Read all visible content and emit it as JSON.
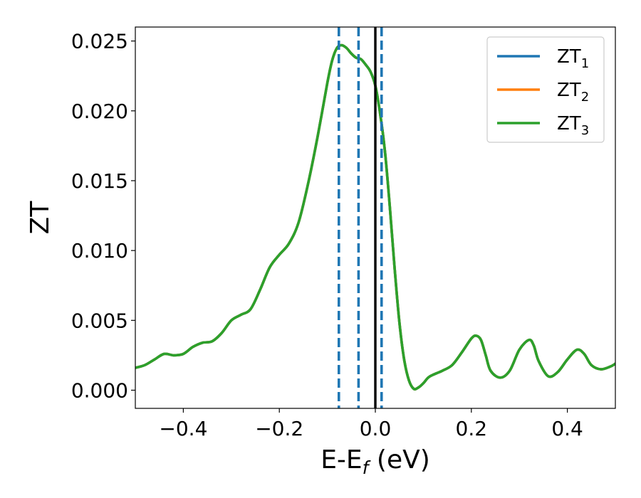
{
  "chart_data": {
    "type": "line",
    "title": "",
    "xlabel": "E-E",
    "xlabel_sub": "f",
    "xlabel_suffix": " (eV)",
    "ylabel": "ZT",
    "xlim": [
      -0.5,
      0.5
    ],
    "ylim": [
      -0.0013,
      0.026
    ],
    "x_ticks": [
      -0.4,
      -0.2,
      0.0,
      0.2,
      0.4
    ],
    "x_tick_labels": [
      "−0.4",
      "−0.2",
      "0.0",
      "0.2",
      "0.4"
    ],
    "y_ticks": [
      0.0,
      0.005,
      0.01,
      0.015,
      0.02,
      0.025
    ],
    "y_tick_labels": [
      "0.000",
      "0.005",
      "0.010",
      "0.015",
      "0.020",
      "0.025"
    ],
    "grid": false,
    "legend_position": "top-right",
    "vertical_lines": [
      {
        "x": -0.076,
        "style": "dashed",
        "color": "#1f77b4"
      },
      {
        "x": -0.035,
        "style": "dashed",
        "color": "#1f77b4"
      },
      {
        "x": 0.013,
        "style": "dashed",
        "color": "#1f77b4"
      },
      {
        "x": 0.0,
        "style": "solid",
        "color": "#000000"
      }
    ],
    "x": [
      -0.5,
      -0.48,
      -0.46,
      -0.44,
      -0.42,
      -0.4,
      -0.38,
      -0.36,
      -0.34,
      -0.32,
      -0.3,
      -0.28,
      -0.26,
      -0.24,
      -0.22,
      -0.2,
      -0.18,
      -0.16,
      -0.14,
      -0.12,
      -0.1,
      -0.09,
      -0.08,
      -0.07,
      -0.06,
      -0.05,
      -0.04,
      -0.03,
      -0.02,
      -0.01,
      0.0,
      0.01,
      0.02,
      0.03,
      0.04,
      0.05,
      0.06,
      0.07,
      0.08,
      0.09,
      0.1,
      0.11,
      0.12,
      0.14,
      0.16,
      0.18,
      0.2,
      0.21,
      0.22,
      0.23,
      0.24,
      0.26,
      0.28,
      0.3,
      0.32,
      0.33,
      0.34,
      0.36,
      0.38,
      0.4,
      0.42,
      0.435,
      0.45,
      0.47,
      0.49,
      0.5
    ],
    "series": [
      {
        "name": "ZT",
        "sub": "1",
        "color": "#1f77b4",
        "values": [
          0.0016,
          0.0018,
          0.0022,
          0.0026,
          0.0025,
          0.0026,
          0.0031,
          0.0034,
          0.0035,
          0.0041,
          0.005,
          0.0054,
          0.0058,
          0.0072,
          0.0088,
          0.0097,
          0.0105,
          0.012,
          0.0148,
          0.0182,
          0.022,
          0.0236,
          0.0245,
          0.0247,
          0.0245,
          0.0241,
          0.0238,
          0.0237,
          0.0233,
          0.0228,
          0.0218,
          0.0198,
          0.0171,
          0.0132,
          0.0088,
          0.0049,
          0.0022,
          0.0007,
          0.0001,
          0.0002,
          0.0005,
          0.0009,
          0.0011,
          0.0014,
          0.0018,
          0.0027,
          0.0037,
          0.0039,
          0.0036,
          0.0025,
          0.0014,
          0.0009,
          0.0014,
          0.0029,
          0.0036,
          0.0032,
          0.0021,
          0.001,
          0.0013,
          0.0022,
          0.0029,
          0.0026,
          0.0018,
          0.0015,
          0.0017,
          0.0019
        ]
      },
      {
        "name": "ZT",
        "sub": "2",
        "color": "#ff7f0e",
        "values": [
          0.0016,
          0.0018,
          0.0022,
          0.0026,
          0.0025,
          0.0026,
          0.0031,
          0.0034,
          0.0035,
          0.0041,
          0.005,
          0.0054,
          0.0058,
          0.0072,
          0.0088,
          0.0097,
          0.0105,
          0.012,
          0.0148,
          0.0182,
          0.022,
          0.0236,
          0.0245,
          0.0247,
          0.0245,
          0.0241,
          0.0238,
          0.0237,
          0.0233,
          0.0228,
          0.0218,
          0.0198,
          0.0171,
          0.0132,
          0.0088,
          0.0049,
          0.0022,
          0.0007,
          0.0001,
          0.0002,
          0.0005,
          0.0009,
          0.0011,
          0.0014,
          0.0018,
          0.0027,
          0.0037,
          0.0039,
          0.0036,
          0.0025,
          0.0014,
          0.0009,
          0.0014,
          0.0029,
          0.0036,
          0.0032,
          0.0021,
          0.001,
          0.0013,
          0.0022,
          0.0029,
          0.0026,
          0.0018,
          0.0015,
          0.0017,
          0.0019
        ]
      },
      {
        "name": "ZT",
        "sub": "3",
        "color": "#2ca02c",
        "values": [
          0.0016,
          0.0018,
          0.0022,
          0.0026,
          0.0025,
          0.0026,
          0.0031,
          0.0034,
          0.0035,
          0.0041,
          0.005,
          0.0054,
          0.0058,
          0.0072,
          0.0088,
          0.0097,
          0.0105,
          0.012,
          0.0148,
          0.0182,
          0.022,
          0.0236,
          0.0245,
          0.0247,
          0.0245,
          0.0241,
          0.0238,
          0.0237,
          0.0233,
          0.0228,
          0.0218,
          0.0198,
          0.0171,
          0.0132,
          0.0088,
          0.0049,
          0.0022,
          0.0007,
          0.0001,
          0.0002,
          0.0005,
          0.0009,
          0.0011,
          0.0014,
          0.0018,
          0.0027,
          0.0037,
          0.0039,
          0.0036,
          0.0025,
          0.0014,
          0.0009,
          0.0014,
          0.0029,
          0.0036,
          0.0032,
          0.0021,
          0.001,
          0.0013,
          0.0022,
          0.0029,
          0.0026,
          0.0018,
          0.0015,
          0.0017,
          0.0019
        ]
      }
    ]
  }
}
